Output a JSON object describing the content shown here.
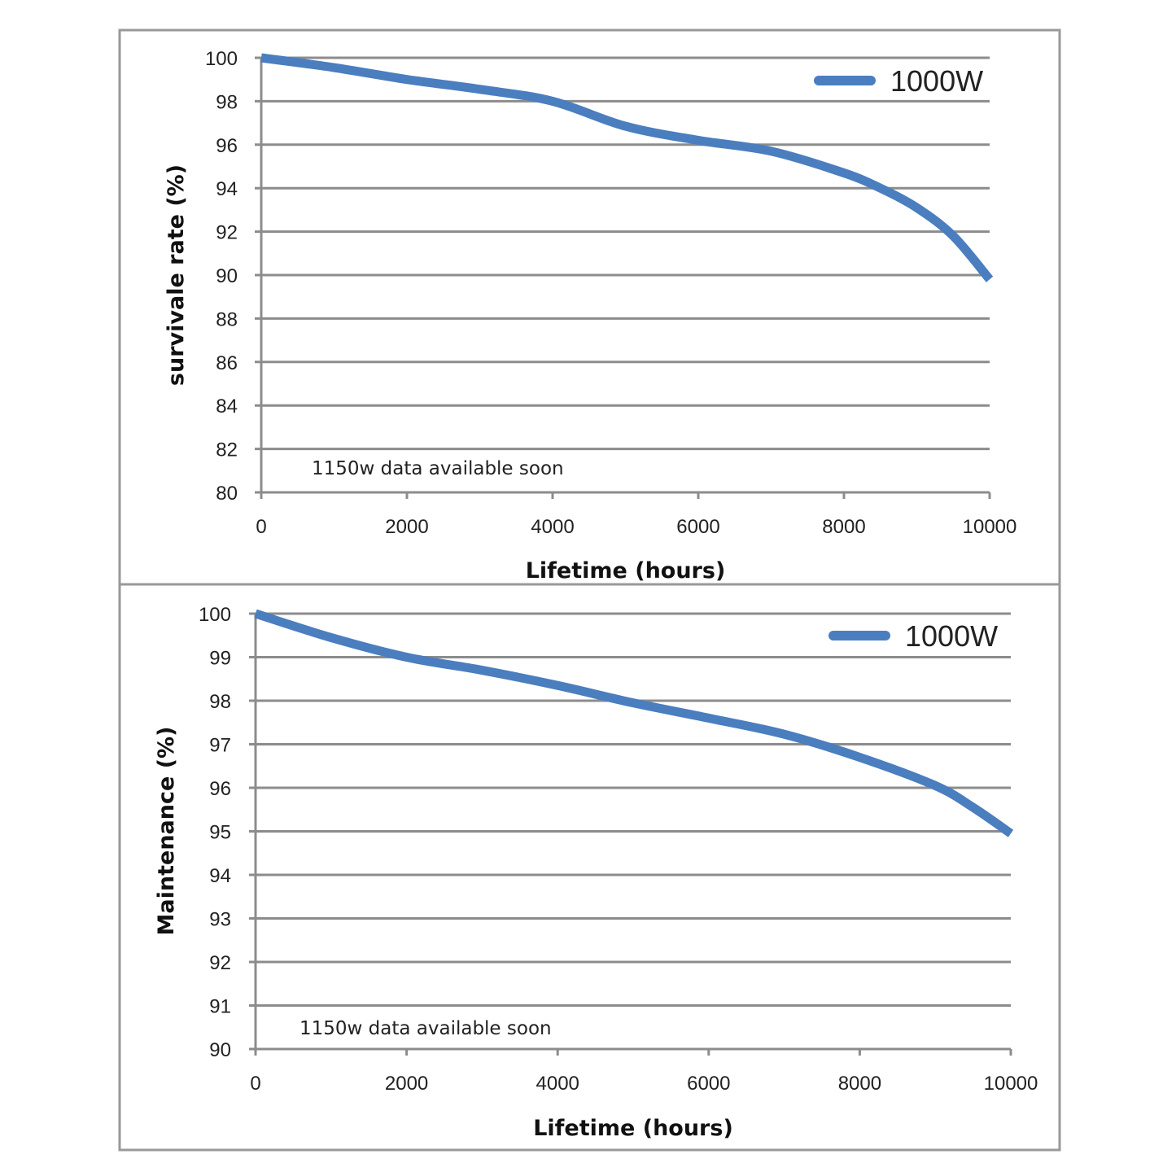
{
  "chart_data": [
    {
      "type": "line",
      "xlabel": "Lifetime (hours)",
      "ylabel": "survivale rate (%)",
      "xlim": [
        0,
        10000
      ],
      "ylim": [
        80,
        100
      ],
      "xticks": [
        "0",
        "2000",
        "4000",
        "6000",
        "8000",
        "10000"
      ],
      "yticks": [
        "80",
        "82",
        "84",
        "86",
        "88",
        "90",
        "92",
        "94",
        "96",
        "98",
        "100"
      ],
      "grid": "horizontal",
      "legend_placement": "top-right",
      "annotation": "1150w data available soon",
      "series": [
        {
          "name": "1000W",
          "color": "#4a7ebf",
          "x": [
            0,
            1000,
            2000,
            3000,
            4000,
            5000,
            6000,
            7000,
            8000,
            8500,
            9000,
            9500,
            10000
          ],
          "y": [
            100,
            99.55,
            99.0,
            98.55,
            98.0,
            96.85,
            96.2,
            95.7,
            94.7,
            94.0,
            93.1,
            91.8,
            89.8
          ]
        }
      ]
    },
    {
      "type": "line",
      "xlabel": "Lifetime (hours)",
      "ylabel": "Maintenance (%)",
      "xlim": [
        0,
        10000
      ],
      "ylim": [
        90,
        100
      ],
      "xticks": [
        "0",
        "2000",
        "4000",
        "6000",
        "8000",
        "10000"
      ],
      "yticks": [
        "90",
        "91",
        "92",
        "93",
        "94",
        "95",
        "96",
        "97",
        "98",
        "99",
        "100"
      ],
      "grid": "horizontal",
      "legend_placement": "top-right",
      "annotation": "1150w data available soon",
      "series": [
        {
          "name": "1000W",
          "color": "#4a7ebf",
          "x": [
            0,
            1000,
            2000,
            3000,
            4000,
            5000,
            6000,
            7000,
            8000,
            9000,
            9500,
            10000
          ],
          "y": [
            100,
            99.45,
            99.0,
            98.7,
            98.35,
            97.95,
            97.6,
            97.23,
            96.7,
            96.05,
            95.55,
            94.95
          ]
        }
      ]
    }
  ]
}
